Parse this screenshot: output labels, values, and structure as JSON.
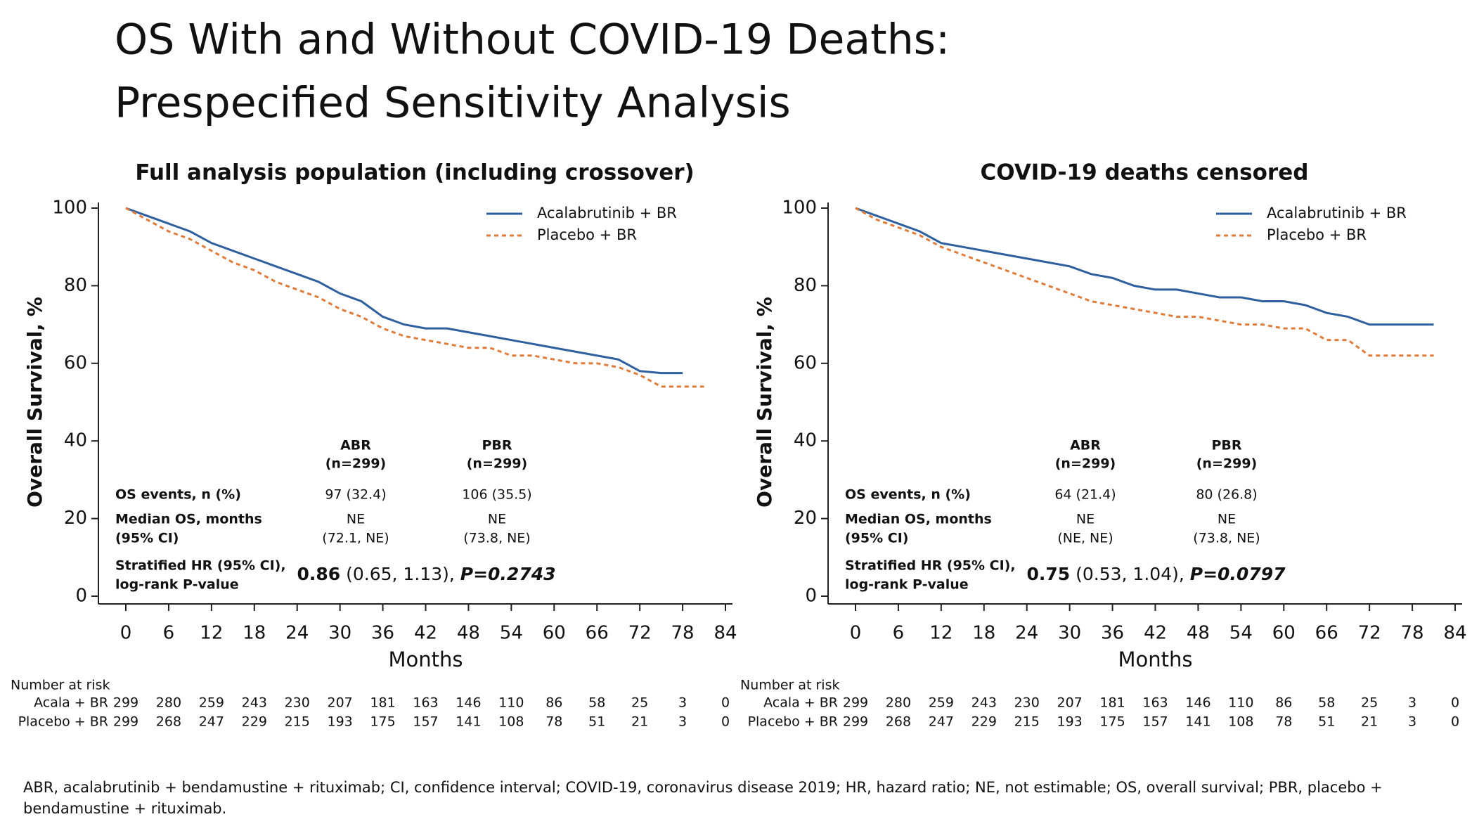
{
  "title": [
    "OS With and Without COVID-19 Deaths:",
    "Prespecified Sensitivity Analysis"
  ],
  "footnote": [
    "ABR, acalabrutinib + bendamustine + rituximab; CI, confidence interval; COVID-19, coronavirus disease 2019; HR, hazard ratio; NE, not estimable; OS, overall survival; PBR, placebo +",
    "bendamustine + rituximab."
  ],
  "chart_data": [
    {
      "type": "line",
      "title": "Full analysis population (including crossover)",
      "ylabel": "Overall Survival, %",
      "xlabel": "Months",
      "x": [
        0,
        3,
        6,
        9,
        12,
        15,
        18,
        21,
        24,
        27,
        30,
        33,
        36,
        39,
        42,
        45,
        48,
        51,
        54,
        57,
        60,
        63,
        66,
        69,
        72,
        75,
        78,
        81
      ],
      "xlim": [
        0,
        84
      ],
      "xticks": [
        0,
        6,
        12,
        18,
        24,
        30,
        36,
        42,
        48,
        54,
        60,
        66,
        72,
        78,
        84
      ],
      "ylim": [
        0,
        100
      ],
      "yticks": [
        0,
        20,
        40,
        60,
        80,
        100
      ],
      "legend": "upper right",
      "series": [
        {
          "name": "Acalabrutinib + BR",
          "color": "#2e5f9e",
          "line_style": "solid",
          "values": [
            100,
            98,
            96,
            94,
            91,
            89,
            87,
            85,
            83,
            81,
            78,
            76,
            72,
            70,
            69,
            69,
            68,
            67,
            66,
            65,
            64,
            63,
            62,
            61,
            58,
            57.5,
            57.5,
            null
          ]
        },
        {
          "name": "Placebo + BR",
          "color": "#e07b39",
          "line_style": "dashed",
          "values": [
            100,
            97,
            94,
            92,
            89,
            86,
            84,
            81,
            79,
            77,
            74,
            72,
            69,
            67,
            66,
            65,
            64,
            64,
            62,
            62,
            61,
            60,
            60,
            59,
            57,
            54,
            54,
            54
          ]
        }
      ],
      "stats_table": {
        "columns": [
          [
            "ABR",
            "(n=299)"
          ],
          [
            "PBR",
            "(n=299)"
          ]
        ],
        "rows": [
          {
            "label": [
              "OS events, n (%)"
            ],
            "values": [
              [
                "97 (32.4)"
              ],
              [
                "106 (35.5)"
              ]
            ]
          },
          {
            "label": [
              "Median OS, months",
              "(95% CI)"
            ],
            "values": [
              [
                "NE",
                "(72.1, NE)"
              ],
              [
                "NE",
                "(73.8, NE)"
              ]
            ]
          }
        ],
        "hr": {
          "label": [
            "Stratified HR (95% CI),",
            "log-rank P-value"
          ],
          "estimate": "0.86",
          "ci": "(0.65, 1.13),",
          "p": "P=0.2743"
        }
      },
      "risk_table": {
        "title": "Number at risk",
        "rows": [
          {
            "name": "Acala + BR",
            "values": [
              299,
              280,
              259,
              243,
              230,
              207,
              181,
              163,
              146,
              110,
              86,
              58,
              25,
              3,
              0
            ]
          },
          {
            "name": "Placebo + BR",
            "values": [
              299,
              268,
              247,
              229,
              215,
              193,
              175,
              157,
              141,
              108,
              78,
              51,
              21,
              3,
              0
            ]
          }
        ]
      }
    },
    {
      "type": "line",
      "title": "COVID-19 deaths censored",
      "ylabel": "Overall Survival, %",
      "xlabel": "Months",
      "x": [
        0,
        3,
        6,
        9,
        12,
        15,
        18,
        21,
        24,
        27,
        30,
        33,
        36,
        39,
        42,
        45,
        48,
        51,
        54,
        57,
        60,
        63,
        66,
        69,
        72,
        75,
        78,
        81
      ],
      "xlim": [
        0,
        84
      ],
      "xticks": [
        0,
        6,
        12,
        18,
        24,
        30,
        36,
        42,
        48,
        54,
        60,
        66,
        72,
        78,
        84
      ],
      "ylim": [
        0,
        100
      ],
      "yticks": [
        0,
        20,
        40,
        60,
        80,
        100
      ],
      "legend": "upper right",
      "series": [
        {
          "name": "Acalabrutinib + BR",
          "color": "#2e5f9e",
          "line_style": "solid",
          "values": [
            100,
            98,
            96,
            94,
            91,
            90,
            89,
            88,
            87,
            86,
            85,
            83,
            82,
            80,
            79,
            79,
            78,
            77,
            77,
            76,
            76,
            75,
            73,
            72,
            70,
            70,
            70,
            70
          ]
        },
        {
          "name": "Placebo + BR",
          "color": "#e07b39",
          "line_style": "dashed",
          "values": [
            100,
            97,
            95,
            93,
            90,
            88,
            86,
            84,
            82,
            80,
            78,
            76,
            75,
            74,
            73,
            72,
            72,
            71,
            70,
            70,
            69,
            69,
            66,
            66,
            62,
            62,
            62,
            62
          ]
        }
      ],
      "stats_table": {
        "columns": [
          [
            "ABR",
            "(n=299)"
          ],
          [
            "PBR",
            "(n=299)"
          ]
        ],
        "rows": [
          {
            "label": [
              "OS events, n (%)"
            ],
            "values": [
              [
                "64 (21.4)"
              ],
              [
                "80 (26.8)"
              ]
            ]
          },
          {
            "label": [
              "Median OS, months",
              "(95% CI)"
            ],
            "values": [
              [
                "NE",
                "(NE, NE)"
              ],
              [
                "NE",
                "(73.8, NE)"
              ]
            ]
          }
        ],
        "hr": {
          "label": [
            "Stratified HR (95% CI),",
            "log-rank P-value"
          ],
          "estimate": "0.75",
          "ci": "(0.53, 1.04),",
          "p": "P=0.0797"
        }
      },
      "risk_table": {
        "title": "Number at risk",
        "rows": [
          {
            "name": "Acala + BR",
            "values": [
              299,
              280,
              259,
              243,
              230,
              207,
              181,
              163,
              146,
              110,
              86,
              58,
              25,
              3,
              0
            ]
          },
          {
            "name": "Placebo + BR",
            "values": [
              299,
              268,
              247,
              229,
              215,
              193,
              175,
              157,
              141,
              108,
              78,
              51,
              21,
              3,
              0
            ]
          }
        ]
      }
    }
  ]
}
